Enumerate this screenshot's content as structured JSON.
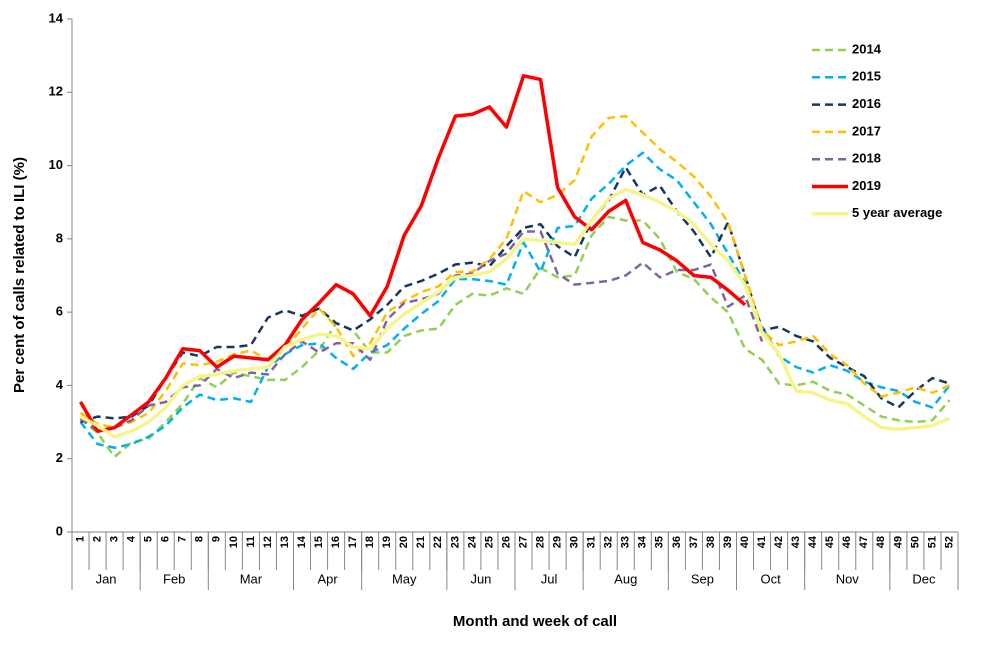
{
  "chart_data": {
    "type": "line",
    "y_label": "Per cent of calls related to ILI (%)",
    "x_label": "Month and week of call",
    "categories": [
      1,
      2,
      3,
      4,
      5,
      6,
      7,
      8,
      9,
      10,
      11,
      12,
      13,
      14,
      15,
      16,
      17,
      18,
      19,
      20,
      21,
      22,
      23,
      24,
      25,
      26,
      27,
      28,
      29,
      30,
      31,
      32,
      33,
      34,
      35,
      36,
      37,
      38,
      39,
      40,
      41,
      42,
      43,
      44,
      45,
      46,
      47,
      48,
      49,
      50,
      51,
      52
    ],
    "months": [
      {
        "label": "Jan",
        "weeks": 4
      },
      {
        "label": "Feb",
        "weeks": 4
      },
      {
        "label": "Mar",
        "weeks": 5
      },
      {
        "label": "Apr",
        "weeks": 4
      },
      {
        "label": "May",
        "weeks": 5
      },
      {
        "label": "Jun",
        "weeks": 4
      },
      {
        "label": "Jul",
        "weeks": 4
      },
      {
        "label": "Aug",
        "weeks": 5
      },
      {
        "label": "Sep",
        "weeks": 4
      },
      {
        "label": "Oct",
        "weeks": 4
      },
      {
        "label": "Nov",
        "weeks": 5
      },
      {
        "label": "Dec",
        "weeks": 4
      }
    ],
    "ylim": [
      0,
      14
    ],
    "yticks": [
      0,
      2,
      4,
      6,
      8,
      10,
      12,
      14
    ],
    "grid": false,
    "legend": "upper right",
    "series": [
      {
        "name": "2014",
        "color": "#92d050",
        "dashed": true,
        "values": [
          3.1,
          2.7,
          2.05,
          2.45,
          2.55,
          3.0,
          3.5,
          4.2,
          3.95,
          4.35,
          4.25,
          4.15,
          4.15,
          4.5,
          4.95,
          5.7,
          5.5,
          4.9,
          4.9,
          5.35,
          5.5,
          5.55,
          6.2,
          6.5,
          6.45,
          6.65,
          6.5,
          7.2,
          6.95,
          7.0,
          8.1,
          8.6,
          8.5,
          8.5,
          8.0,
          7.1,
          6.9,
          6.4,
          6.0,
          5.0,
          4.7,
          4.05,
          4.0,
          4.1,
          3.85,
          3.75,
          3.45,
          3.15,
          3.05,
          3.0,
          3.05,
          3.6
        ]
      },
      {
        "name": "2015",
        "color": "#00b0f0",
        "dashed": true,
        "values": [
          3.0,
          2.4,
          2.3,
          2.4,
          2.6,
          2.9,
          3.4,
          3.75,
          3.6,
          3.65,
          3.55,
          4.5,
          4.85,
          5.1,
          5.15,
          4.75,
          4.45,
          4.9,
          5.1,
          5.55,
          5.95,
          6.3,
          6.9,
          6.9,
          6.85,
          6.75,
          7.9,
          7.1,
          8.3,
          8.35,
          9.1,
          9.5,
          10.0,
          10.35,
          9.9,
          9.6,
          9.0,
          8.4,
          7.6,
          6.8,
          5.6,
          4.8,
          4.5,
          4.35,
          4.55,
          4.4,
          4.1,
          3.95,
          3.85,
          3.55,
          3.4,
          4.0
        ]
      },
      {
        "name": "2016",
        "color": "#17375e",
        "dashed": true,
        "values": [
          3.0,
          3.15,
          3.1,
          3.15,
          3.45,
          4.2,
          4.9,
          4.8,
          5.05,
          5.05,
          5.1,
          5.85,
          6.05,
          5.9,
          6.1,
          5.7,
          5.5,
          5.8,
          6.2,
          6.7,
          6.85,
          7.05,
          7.3,
          7.35,
          7.25,
          7.8,
          8.3,
          8.4,
          7.8,
          7.5,
          8.5,
          9.05,
          9.95,
          9.2,
          9.45,
          8.75,
          8.2,
          7.5,
          8.45,
          7.0,
          5.5,
          5.6,
          5.35,
          5.2,
          4.75,
          4.5,
          4.25,
          3.65,
          3.4,
          3.85,
          4.2,
          4.05
        ]
      },
      {
        "name": "2017",
        "color": "#ffc000",
        "dashed": true,
        "values": [
          3.25,
          2.95,
          2.85,
          3.0,
          3.25,
          3.85,
          4.6,
          4.55,
          4.65,
          4.85,
          4.95,
          4.7,
          5.0,
          5.55,
          6.1,
          5.6,
          4.8,
          5.15,
          6.0,
          6.3,
          6.55,
          6.7,
          7.1,
          7.1,
          7.45,
          8.0,
          9.3,
          9.0,
          9.2,
          9.6,
          10.8,
          11.3,
          11.35,
          10.9,
          10.45,
          10.1,
          9.7,
          9.15,
          8.45,
          7.0,
          5.5,
          5.1,
          5.2,
          5.35,
          4.85,
          4.55,
          4.05,
          3.7,
          3.8,
          3.95,
          3.8,
          4.0
        ]
      },
      {
        "name": "2018",
        "color": "#8064a2",
        "dashed": true,
        "values": [
          3.1,
          2.75,
          2.85,
          3.05,
          3.45,
          3.55,
          3.95,
          4.0,
          4.45,
          4.2,
          4.35,
          4.3,
          4.85,
          5.2,
          4.9,
          5.15,
          5.15,
          4.7,
          5.8,
          6.25,
          6.35,
          6.5,
          7.0,
          7.05,
          7.4,
          7.6,
          8.2,
          8.2,
          7.05,
          6.75,
          6.8,
          6.85,
          7.0,
          7.35,
          6.95,
          7.15,
          7.15,
          7.3,
          6.15,
          6.45,
          5.2,
          null,
          null,
          null,
          null,
          null,
          null,
          null,
          null,
          null,
          null,
          null
        ]
      },
      {
        "name": "2019",
        "color": "#ff0000",
        "dashed": false,
        "values": [
          3.55,
          2.75,
          2.85,
          3.2,
          3.55,
          4.2,
          5.0,
          4.95,
          4.5,
          4.8,
          4.75,
          4.7,
          5.1,
          5.8,
          6.25,
          6.75,
          6.5,
          5.9,
          6.7,
          8.1,
          8.9,
          10.2,
          11.35,
          11.4,
          11.6,
          11.05,
          12.45,
          12.35,
          9.4,
          8.6,
          8.25,
          8.75,
          9.05,
          7.9,
          7.7,
          7.4,
          7.0,
          6.95,
          6.6,
          6.2,
          null,
          null,
          null,
          null,
          null,
          null,
          null,
          null,
          null,
          null,
          null,
          null
        ]
      },
      {
        "name": "5 year average",
        "color": "#f5f58c",
        "dashed": false,
        "values": [
          3.15,
          2.9,
          2.6,
          2.75,
          3.0,
          3.4,
          4.0,
          4.25,
          4.3,
          4.4,
          4.45,
          4.5,
          5.05,
          5.25,
          5.4,
          5.35,
          5.05,
          5.0,
          5.55,
          5.95,
          6.25,
          6.55,
          6.95,
          7.0,
          7.1,
          7.45,
          8.0,
          7.95,
          7.9,
          7.85,
          8.5,
          9.1,
          9.35,
          9.2,
          9.0,
          8.75,
          8.4,
          7.85,
          7.4,
          6.75,
          5.45,
          4.85,
          3.85,
          3.8,
          3.6,
          3.5,
          3.15,
          2.85,
          2.8,
          2.85,
          2.9,
          3.1
        ]
      }
    ]
  }
}
